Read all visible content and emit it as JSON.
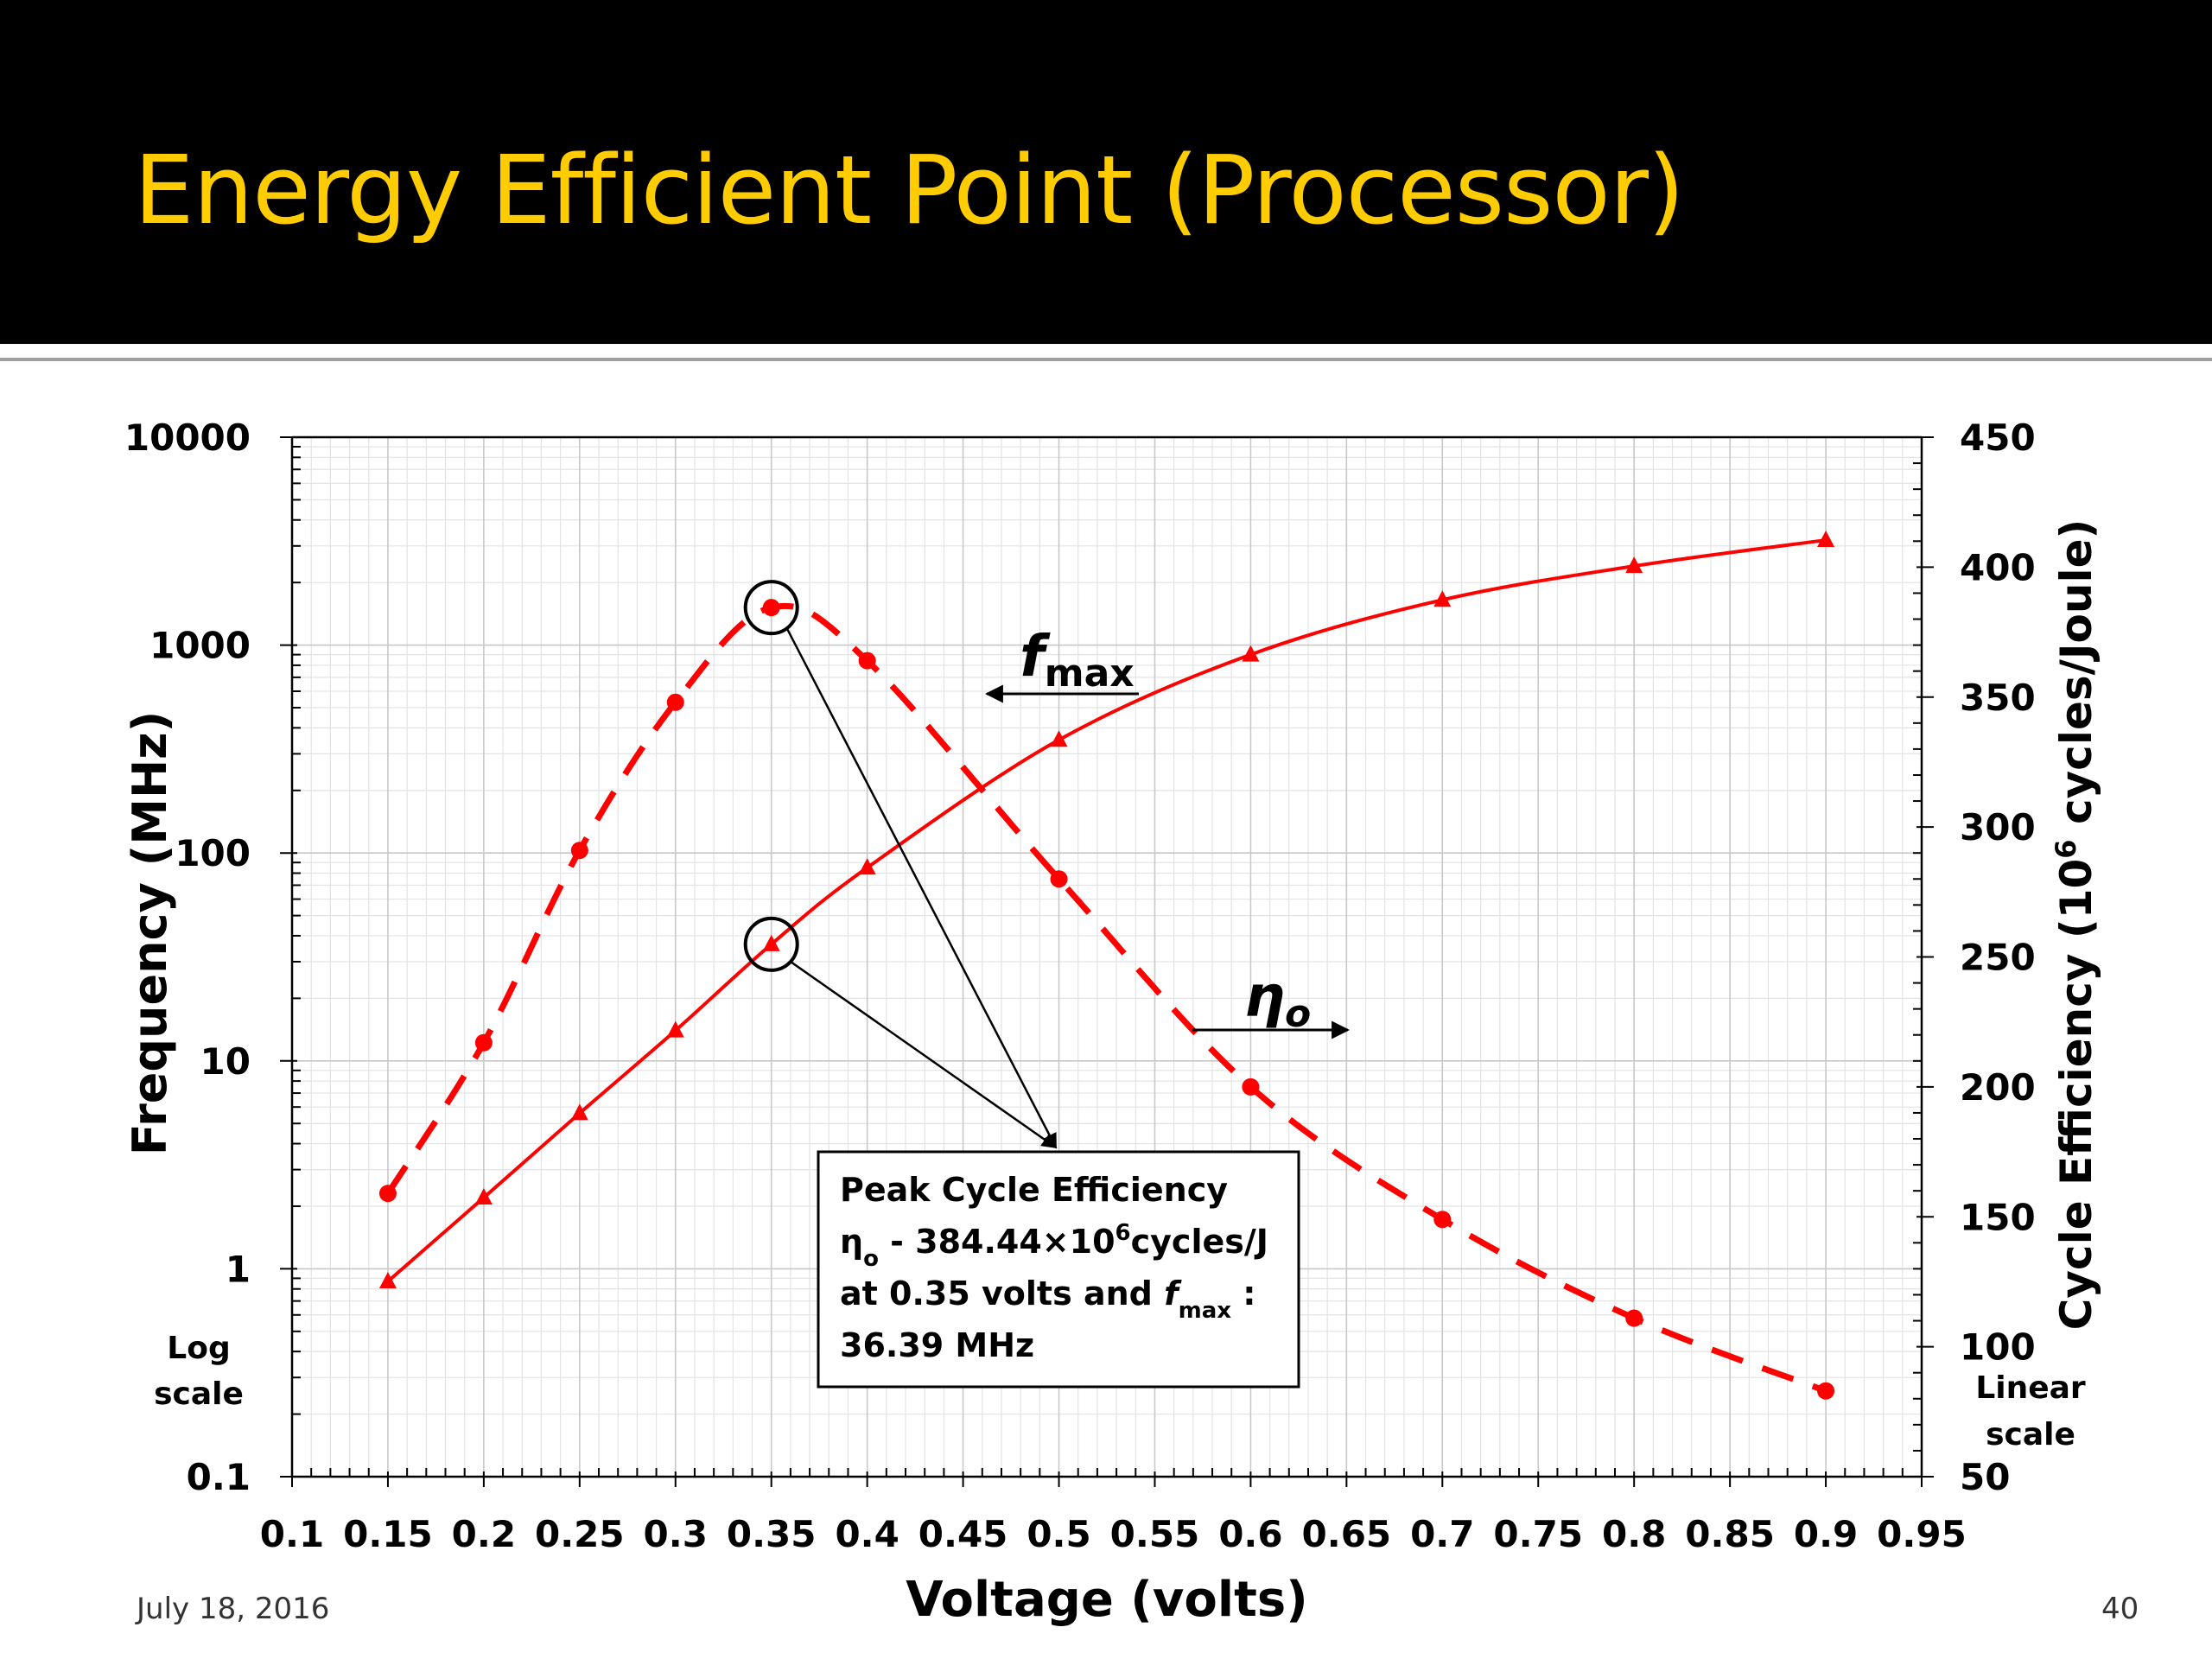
{
  "slide": {
    "title": "Energy Efficient Point (Processor)",
    "date": "July 18, 2016",
    "page_number": "40"
  },
  "colors": {
    "title_bar": "#000000",
    "title_text": "#ffcc00",
    "series": "#ff0000"
  },
  "chart_data": {
    "type": "line",
    "title": "",
    "xlabel": "Voltage (volts)",
    "ylabel_left": "Frequency (MHz)",
    "ylabel_right_prefix": "Cycle Efficiency (10",
    "ylabel_right_sup": "6",
    "ylabel_right_suffix": " cycles/Joule)",
    "xlim": [
      0.1,
      0.95
    ],
    "ylim_left": [
      0.1,
      10000
    ],
    "ylim_right": [
      50,
      450
    ],
    "left_scale": "log",
    "right_scale": "linear",
    "grid": true,
    "x_ticks": [
      "0.1",
      "0.15",
      "0.2",
      "0.25",
      "0.3",
      "0.35",
      "0.4",
      "0.45",
      "0.5",
      "0.55",
      "0.6",
      "0.65",
      "0.7",
      "0.75",
      "0.8",
      "0.85",
      "0.9",
      "0.95"
    ],
    "y_left_ticks": [
      "0.1",
      "1",
      "10",
      "100",
      "1000",
      "10000"
    ],
    "y_right_ticks": [
      "50",
      "100",
      "150",
      "200",
      "250",
      "300",
      "350",
      "400",
      "450"
    ],
    "left_axis_note": [
      "Log",
      "scale"
    ],
    "right_axis_note": [
      "Linear",
      "scale"
    ],
    "series": [
      {
        "name": "fmax",
        "axis": "left",
        "style": "solid",
        "marker": "triangle",
        "x": [
          0.15,
          0.2,
          0.25,
          0.3,
          0.35,
          0.4,
          0.5,
          0.6,
          0.7,
          0.8,
          0.9
        ],
        "values": [
          0.87,
          2.2,
          5.6,
          14,
          36.39,
          85,
          350,
          900,
          1650,
          2400,
          3200
        ]
      },
      {
        "name": "ηo",
        "axis": "right",
        "style": "dashed",
        "marker": "circle",
        "x": [
          0.15,
          0.2,
          0.25,
          0.3,
          0.35,
          0.4,
          0.5,
          0.6,
          0.7,
          0.8,
          0.9
        ],
        "values": [
          159,
          217,
          291,
          348,
          384.44,
          364,
          280,
          200,
          149,
          111,
          83
        ]
      }
    ],
    "series_labels": {
      "fmax": {
        "main": "f",
        "sub": "max"
      },
      "eta": {
        "main": "η",
        "sub": "o"
      }
    },
    "annotation": {
      "lines": [
        {
          "parts": [
            {
              "t": "Peak Cycle Efficiency"
            }
          ]
        },
        {
          "parts": [
            {
              "t": "η"
            },
            {
              "t": "o",
              "sub": true
            },
            {
              "t": " - 384.44×10"
            },
            {
              "t": "6",
              "sup": true
            },
            {
              "t": "cycles/J"
            }
          ]
        },
        {
          "parts": [
            {
              "t": "at 0.35 volts and "
            },
            {
              "t": "f",
              "italic": true
            },
            {
              "t": "max",
              "sub": true
            },
            {
              "t": " :"
            }
          ]
        },
        {
          "parts": [
            {
              "t": "36.39 MHz"
            }
          ]
        }
      ]
    }
  }
}
